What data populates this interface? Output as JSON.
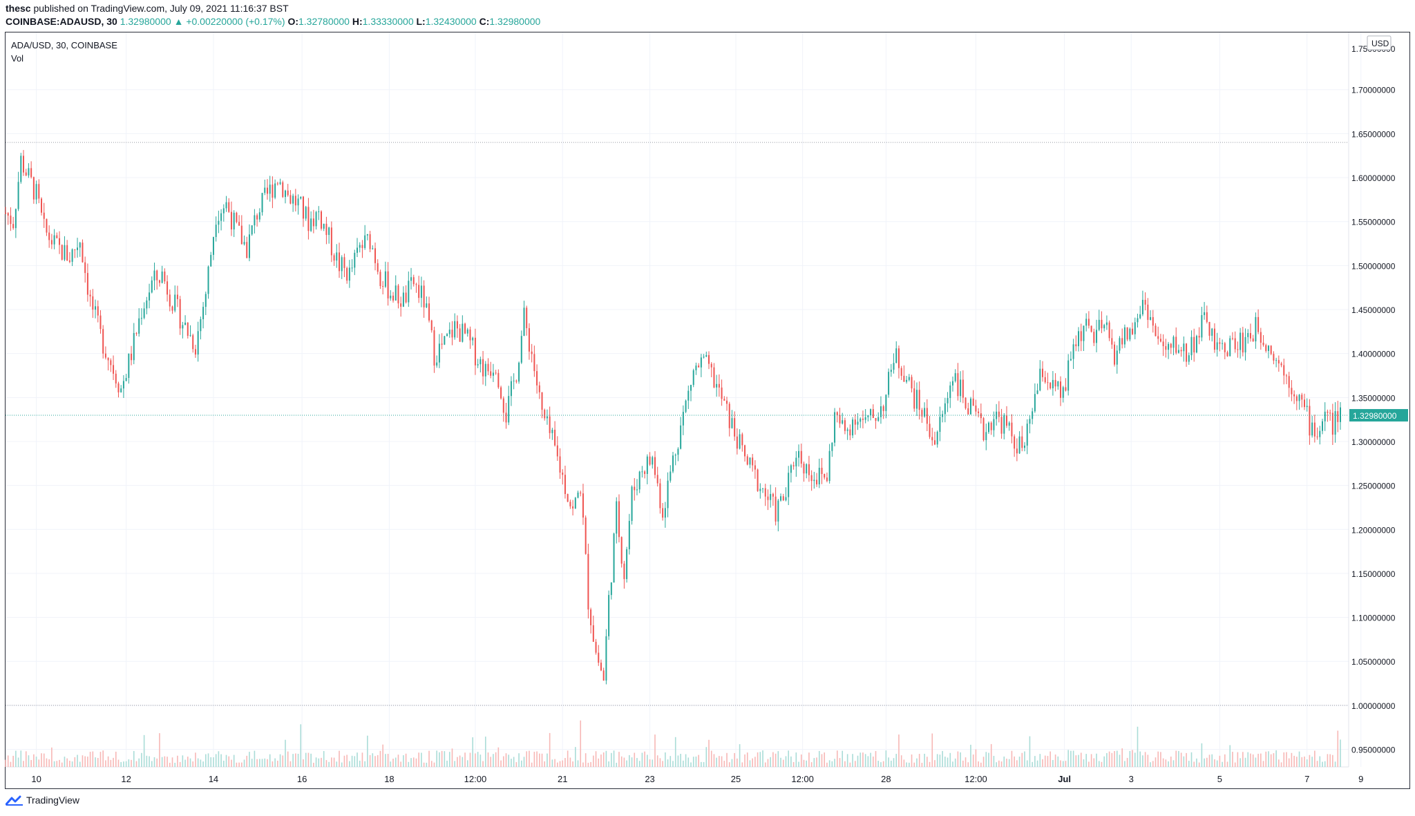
{
  "header": {
    "author": "thesc",
    "published_text": "published on TradingView.com, July 09, 2021 11:16:37 BST",
    "symbol_interval": "COINBASE:ADAUSD, 30",
    "last_price": "1.32980000",
    "change_arrow": "▲",
    "change_text": "+0.00220000 (+0.17%)",
    "o_label": "O:",
    "o_value": "1.32780000",
    "h_label": "H:",
    "h_value": "1.33330000",
    "l_label": "L:",
    "l_value": "1.32430000",
    "c_label": "C:",
    "c_value": "1.32980000"
  },
  "legend": {
    "title": "ADA/USD, 30, COINBASE",
    "volume": "Vol"
  },
  "footer": {
    "brand": "TradingView",
    "icon": "tradingview-logo-icon"
  },
  "colors": {
    "up": "#26a69a",
    "down": "#ef5350",
    "up_volume": "#a9dcd7",
    "down_volume": "#f7b7b5",
    "grid": "#f0f3fa",
    "axis_text": "#131722",
    "price_label_bg": "#26a69a"
  },
  "chart_data": {
    "type": "candlestick",
    "symbol": "ADA/USD",
    "interval": "30",
    "exchange": "COINBASE",
    "currency": "USD",
    "ylim": [
      0.93,
      1.765
    ],
    "y_ticks": [
      "0.95000000",
      "1.00000000",
      "1.05000000",
      "1.10000000",
      "1.15000000",
      "1.20000000",
      "1.25000000",
      "1.30000000",
      "1.35000000",
      "1.40000000",
      "1.45000000",
      "1.50000000",
      "1.55000000",
      "1.60000000",
      "1.65000000",
      "1.70000000"
    ],
    "top_tick_label": "1.75000000",
    "x_tick_labels": [
      "10",
      "12",
      "14",
      "16",
      "18",
      "12:00",
      "21",
      "23",
      "25",
      "12:00",
      "28",
      "12:00",
      "Jul",
      "3",
      "5",
      "7",
      "9"
    ],
    "current_price": 1.3298,
    "current_price_label": "1.32980000",
    "reference_lines": [
      1.64,
      1.0
    ],
    "grid": true,
    "close_path": [
      [
        0,
        1.56
      ],
      [
        6,
        1.55
      ],
      [
        12,
        1.62
      ],
      [
        18,
        1.6
      ],
      [
        24,
        1.58
      ],
      [
        30,
        1.54
      ],
      [
        40,
        1.52
      ],
      [
        50,
        1.51
      ],
      [
        58,
        1.53
      ],
      [
        66,
        1.46
      ],
      [
        74,
        1.42
      ],
      [
        82,
        1.39
      ],
      [
        90,
        1.36
      ],
      [
        98,
        1.4
      ],
      [
        106,
        1.45
      ],
      [
        114,
        1.48
      ],
      [
        122,
        1.49
      ],
      [
        130,
        1.46
      ],
      [
        140,
        1.43
      ],
      [
        148,
        1.41
      ],
      [
        156,
        1.47
      ],
      [
        164,
        1.56
      ],
      [
        172,
        1.57
      ],
      [
        180,
        1.54
      ],
      [
        188,
        1.52
      ],
      [
        196,
        1.56
      ],
      [
        204,
        1.58
      ],
      [
        212,
        1.6
      ],
      [
        220,
        1.58
      ],
      [
        228,
        1.57
      ],
      [
        236,
        1.55
      ],
      [
        244,
        1.56
      ],
      [
        252,
        1.53
      ],
      [
        260,
        1.5
      ],
      [
        268,
        1.49
      ],
      [
        276,
        1.52
      ],
      [
        284,
        1.53
      ],
      [
        292,
        1.49
      ],
      [
        300,
        1.47
      ],
      [
        310,
        1.46
      ],
      [
        318,
        1.48
      ],
      [
        326,
        1.46
      ],
      [
        334,
        1.4
      ],
      [
        342,
        1.41
      ],
      [
        350,
        1.43
      ],
      [
        358,
        1.42
      ],
      [
        366,
        1.4
      ],
      [
        374,
        1.38
      ],
      [
        382,
        1.39
      ],
      [
        390,
        1.33
      ],
      [
        398,
        1.38
      ],
      [
        404,
        1.44
      ],
      [
        410,
        1.4
      ],
      [
        418,
        1.33
      ],
      [
        426,
        1.3
      ],
      [
        434,
        1.26
      ],
      [
        442,
        1.22
      ],
      [
        448,
        1.25
      ],
      [
        454,
        1.12
      ],
      [
        460,
        1.06
      ],
      [
        466,
        1.03
      ],
      [
        470,
        1.12
      ],
      [
        476,
        1.22
      ],
      [
        482,
        1.15
      ],
      [
        488,
        1.24
      ],
      [
        496,
        1.27
      ],
      [
        504,
        1.28
      ],
      [
        512,
        1.22
      ],
      [
        520,
        1.28
      ],
      [
        528,
        1.33
      ],
      [
        536,
        1.38
      ],
      [
        544,
        1.39
      ],
      [
        552,
        1.37
      ],
      [
        560,
        1.34
      ],
      [
        568,
        1.31
      ],
      [
        576,
        1.28
      ],
      [
        584,
        1.26
      ],
      [
        592,
        1.24
      ],
      [
        600,
        1.22
      ],
      [
        608,
        1.24
      ],
      [
        616,
        1.29
      ],
      [
        624,
        1.27
      ],
      [
        632,
        1.26
      ],
      [
        640,
        1.26
      ],
      [
        646,
        1.33
      ],
      [
        654,
        1.31
      ],
      [
        662,
        1.33
      ],
      [
        670,
        1.32
      ],
      [
        678,
        1.33
      ],
      [
        686,
        1.35
      ],
      [
        692,
        1.4
      ],
      [
        700,
        1.38
      ],
      [
        708,
        1.35
      ],
      [
        716,
        1.33
      ],
      [
        724,
        1.3
      ],
      [
        732,
        1.34
      ],
      [
        738,
        1.38
      ],
      [
        746,
        1.35
      ],
      [
        754,
        1.33
      ],
      [
        762,
        1.31
      ],
      [
        770,
        1.33
      ],
      [
        778,
        1.32
      ],
      [
        786,
        1.3
      ],
      [
        794,
        1.29
      ],
      [
        800,
        1.34
      ],
      [
        808,
        1.38
      ],
      [
        816,
        1.36
      ],
      [
        824,
        1.35
      ],
      [
        832,
        1.41
      ],
      [
        840,
        1.43
      ],
      [
        848,
        1.42
      ],
      [
        856,
        1.43
      ],
      [
        864,
        1.4
      ],
      [
        872,
        1.42
      ],
      [
        880,
        1.43
      ],
      [
        886,
        1.46
      ],
      [
        890,
        1.45
      ],
      [
        896,
        1.42
      ],
      [
        904,
        1.4
      ],
      [
        912,
        1.41
      ],
      [
        920,
        1.4
      ],
      [
        928,
        1.42
      ],
      [
        936,
        1.44
      ],
      [
        944,
        1.4
      ],
      [
        952,
        1.41
      ],
      [
        960,
        1.41
      ],
      [
        968,
        1.42
      ],
      [
        976,
        1.43
      ],
      [
        984,
        1.41
      ],
      [
        992,
        1.39
      ],
      [
        1000,
        1.37
      ],
      [
        1008,
        1.35
      ],
      [
        1016,
        1.32
      ],
      [
        1022,
        1.31
      ],
      [
        1028,
        1.33
      ],
      [
        1034,
        1.32
      ],
      [
        1040,
        1.33
      ]
    ],
    "close_path_x_range": [
      0,
      1040
    ],
    "x_tick_positions": [
      24,
      94,
      162,
      231,
      299,
      366,
      434,
      502,
      569,
      621,
      686,
      756,
      825,
      877,
      946,
      1014,
      1056
    ]
  }
}
